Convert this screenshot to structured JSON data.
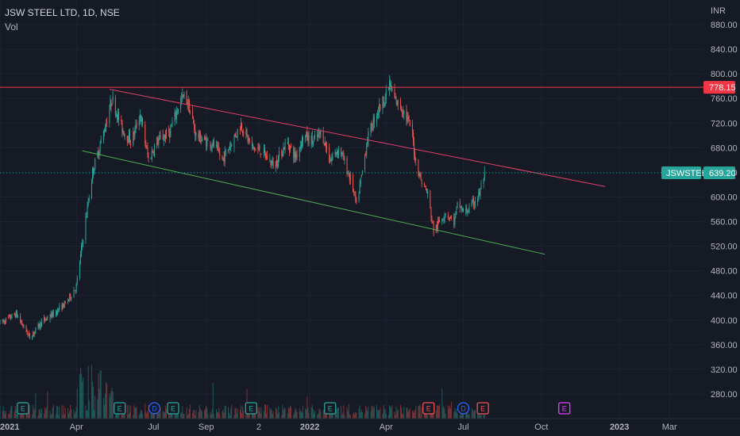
{
  "header": {
    "title": "JSW STEEL LTD, 1D, NSE",
    "volume_label": "Vol"
  },
  "colors": {
    "background": "#161a25",
    "grid": "#1f2331",
    "up": "#26a69a",
    "down": "#ef5350",
    "resistance": "#f23645",
    "channel_upper": "#e0406a",
    "channel_lower": "#4caf50",
    "price_tag": "#26a69a",
    "level_tag": "#f23645",
    "earnings": "#26a69a",
    "earnings_down": "#ef5350",
    "dividend": "#2962ff",
    "future_earnings": "#e040fb"
  },
  "chart_data": {
    "type": "candlestick",
    "title": "JSW STEEL LTD, 1D, NSE",
    "currency": "INR",
    "ylim": [
      240,
      920
    ],
    "xlim": [
      "2021-01-01",
      "2023-04-10"
    ],
    "y_ticks": [
      280,
      320,
      360,
      400,
      440,
      480,
      520,
      560,
      600,
      640,
      680,
      720,
      760,
      800,
      840,
      880
    ],
    "x_ticks": [
      {
        "label": "2021",
        "date": "2021-01-01",
        "bold": true
      },
      {
        "label": "Apr",
        "date": "2021-04-01",
        "bold": false
      },
      {
        "label": "Jul",
        "date": "2021-07-01",
        "bold": false
      },
      {
        "label": "Sep",
        "date": "2021-09-01",
        "bold": false
      },
      {
        "label": "2",
        "date": "2021-11-02",
        "bold": false
      },
      {
        "label": "2022",
        "date": "2022-01-01",
        "bold": true
      },
      {
        "label": "Apr",
        "date": "2022-04-01",
        "bold": false
      },
      {
        "label": "Jul",
        "date": "2022-07-01",
        "bold": false
      },
      {
        "label": "Oct",
        "date": "2022-10-01",
        "bold": false
      },
      {
        "label": "2023",
        "date": "2023-01-01",
        "bold": true
      },
      {
        "label": "Mar",
        "date": "2023-03-01",
        "bold": false
      }
    ],
    "series_keypoints": [
      [
        "2021-01-01",
        395
      ],
      [
        "2021-01-20",
        410
      ],
      [
        "2021-02-05",
        372
      ],
      [
        "2021-02-20",
        398
      ],
      [
        "2021-03-05",
        410
      ],
      [
        "2021-03-20",
        428
      ],
      [
        "2021-04-01",
        455
      ],
      [
        "2021-04-10",
        545
      ],
      [
        "2021-04-20",
        640
      ],
      [
        "2021-05-05",
        715
      ],
      [
        "2021-05-13",
        760
      ],
      [
        "2021-05-25",
        710
      ],
      [
        "2021-06-05",
        690
      ],
      [
        "2021-06-15",
        735
      ],
      [
        "2021-06-25",
        660
      ],
      [
        "2021-07-05",
        690
      ],
      [
        "2021-07-20",
        705
      ],
      [
        "2021-08-01",
        755
      ],
      [
        "2021-08-07",
        765
      ],
      [
        "2021-08-12",
        745
      ],
      [
        "2021-08-20",
        700
      ],
      [
        "2021-09-01",
        690
      ],
      [
        "2021-09-10",
        685
      ],
      [
        "2021-09-20",
        660
      ],
      [
        "2021-10-05",
        700
      ],
      [
        "2021-10-12",
        718
      ],
      [
        "2021-10-25",
        680
      ],
      [
        "2021-11-05",
        675
      ],
      [
        "2021-11-20",
        650
      ],
      [
        "2021-12-05",
        690
      ],
      [
        "2021-12-15",
        665
      ],
      [
        "2021-12-25",
        700
      ],
      [
        "2022-01-05",
        690
      ],
      [
        "2022-01-15",
        705
      ],
      [
        "2022-01-25",
        660
      ],
      [
        "2022-02-05",
        680
      ],
      [
        "2022-02-20",
        620
      ],
      [
        "2022-02-25",
        585
      ],
      [
        "2022-03-05",
        650
      ],
      [
        "2022-03-10",
        695
      ],
      [
        "2022-03-20",
        735
      ],
      [
        "2022-04-01",
        765
      ],
      [
        "2022-04-05",
        783
      ],
      [
        "2022-04-12",
        755
      ],
      [
        "2022-04-20",
        745
      ],
      [
        "2022-05-01",
        710
      ],
      [
        "2022-05-05",
        665
      ],
      [
        "2022-05-12",
        628
      ],
      [
        "2022-05-20",
        605
      ],
      [
        "2022-05-27",
        545
      ],
      [
        "2022-06-03",
        560
      ],
      [
        "2022-06-10",
        575
      ],
      [
        "2022-06-20",
        560
      ],
      [
        "2022-06-25",
        590
      ],
      [
        "2022-07-01",
        575
      ],
      [
        "2022-07-08",
        580
      ],
      [
        "2022-07-15",
        595
      ],
      [
        "2022-07-20",
        605
      ],
      [
        "2022-07-26",
        639
      ]
    ],
    "last_price": {
      "label": "JSWSTEEL",
      "value": "639.20",
      "numeric": 639.2
    },
    "horizontal_level": {
      "value": "778.15",
      "numeric": 778.15
    },
    "trendlines": [
      {
        "name": "upper",
        "from": [
          "2021-05-10",
          775
        ],
        "to": [
          "2022-12-15",
          617
        ]
      },
      {
        "name": "lower",
        "from": [
          "2021-04-08",
          675
        ],
        "to": [
          "2022-10-05",
          507
        ]
      }
    ],
    "events": [
      {
        "type": "E",
        "date": "2021-01-28",
        "style": "earnings"
      },
      {
        "type": "E",
        "date": "2021-05-22",
        "style": "earnings"
      },
      {
        "type": "D",
        "date": "2021-07-02",
        "style": "dividend"
      },
      {
        "type": "E",
        "date": "2021-07-24",
        "style": "earnings"
      },
      {
        "type": "E",
        "date": "2021-10-24",
        "style": "earnings"
      },
      {
        "type": "E",
        "date": "2022-01-25",
        "style": "earnings"
      },
      {
        "type": "E",
        "date": "2022-05-21",
        "style": "earnings_down"
      },
      {
        "type": "D",
        "date": "2022-07-01",
        "style": "dividend"
      },
      {
        "type": "E",
        "date": "2022-07-24",
        "style": "earnings_down"
      },
      {
        "type": "E",
        "date": "2022-10-28",
        "style": "future_earnings"
      }
    ]
  }
}
